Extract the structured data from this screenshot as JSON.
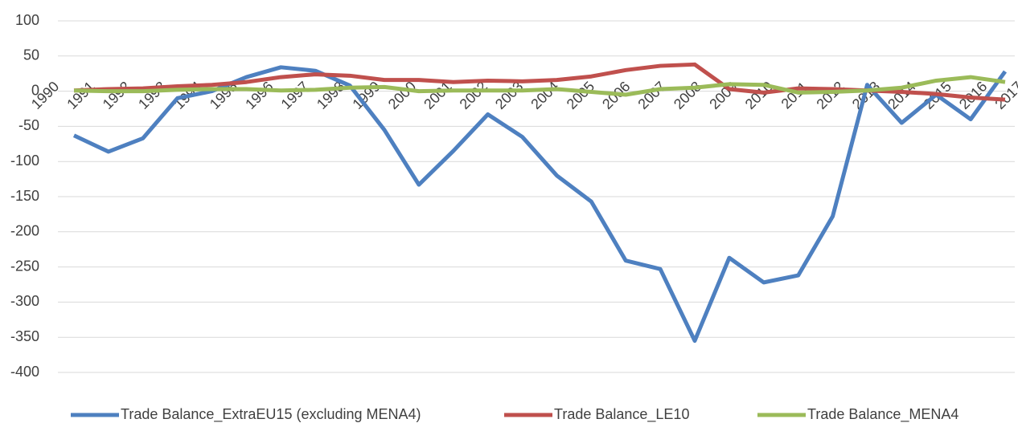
{
  "chart_data": {
    "type": "line",
    "categories": [
      "1990",
      "1991",
      "1992",
      "1993",
      "1994",
      "1995",
      "1996",
      "1997",
      "1998",
      "1999",
      "2000",
      "2001",
      "2002",
      "2003",
      "2004",
      "2005",
      "2006",
      "2007",
      "2008",
      "2009",
      "2010",
      "2011",
      "2012",
      "2013",
      "2014",
      "2015",
      "2016",
      "2017"
    ],
    "series": [
      {
        "name": "Trade Balance_ExtraEU15 (excluding MENA4)",
        "color": "#4e80c0",
        "values": [
          -63,
          -86,
          -67,
          -10,
          0,
          20,
          34,
          29,
          8,
          -55,
          -133,
          -85,
          -33,
          -65,
          -120,
          -157,
          -241,
          -253,
          -355,
          -237,
          -272,
          -262,
          -178,
          9,
          -45,
          -5,
          -40,
          28
        ]
      },
      {
        "name": "Trade Balance_LE10",
        "color": "#c0504d",
        "values": [
          1,
          3,
          4,
          7,
          9,
          13,
          20,
          24,
          22,
          16,
          16,
          13,
          15,
          14,
          16,
          21,
          30,
          36,
          38,
          3,
          -2,
          4,
          3,
          1,
          -1,
          -4,
          -9,
          -12
        ]
      },
      {
        "name": "Trade Balance_MENA4",
        "color": "#9bbb59",
        "values": [
          1,
          0,
          0,
          2,
          3,
          3,
          1,
          2,
          5,
          6,
          0,
          1,
          1,
          1,
          3,
          -1,
          -5,
          3,
          5,
          10,
          9,
          -2,
          -1,
          1,
          5,
          15,
          20,
          13
        ]
      }
    ],
    "ylim": [
      -400,
      100
    ],
    "yticks": [
      100,
      50,
      0,
      -50,
      -100,
      -150,
      -200,
      -250,
      -300,
      -350,
      -400
    ],
    "grid": true,
    "legend": "bottom"
  }
}
